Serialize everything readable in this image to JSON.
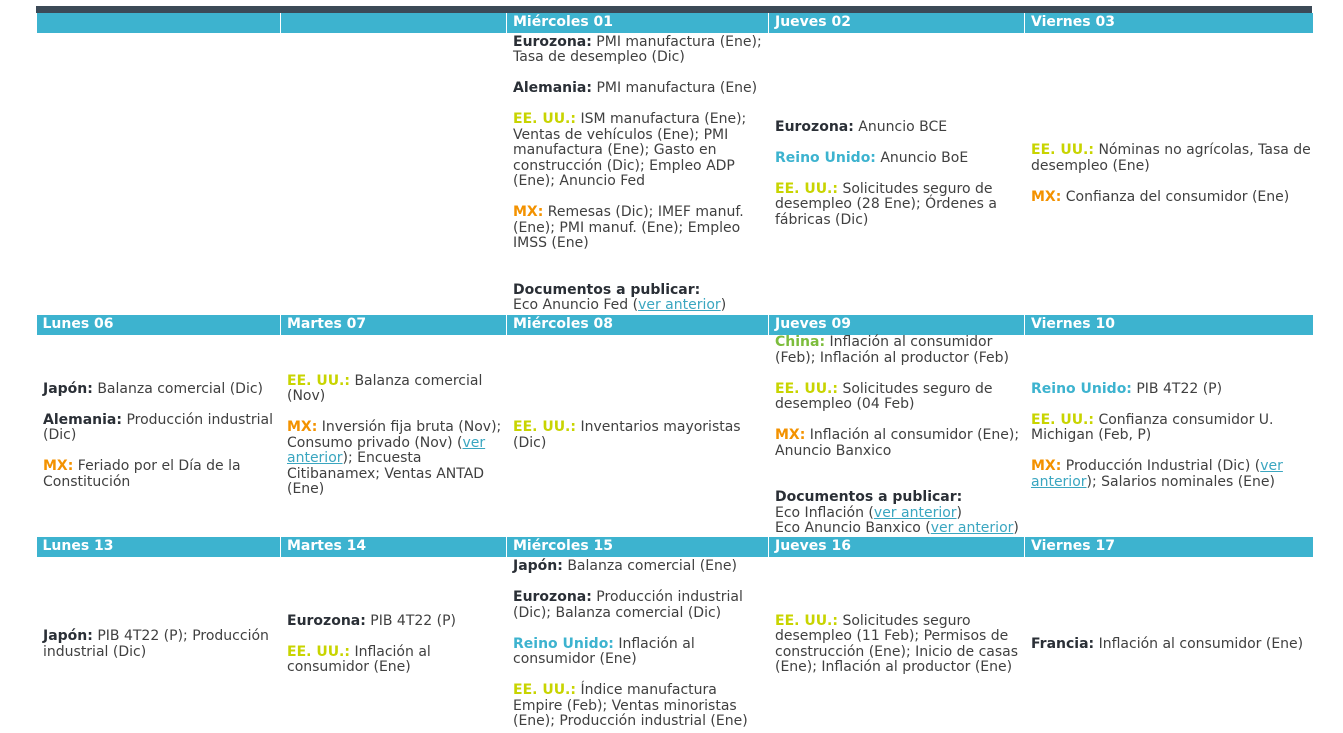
{
  "weeks": [
    {
      "headers": [
        "",
        "",
        "Miércoles 01",
        "Jueves 02",
        "Viernes 03"
      ],
      "cells": [
        [],
        [],
        [
          {
            "label": "Eurozona:",
            "color": "dark",
            "text": "PMI manufactura (Ene); Tasa de desempleo (Dic)"
          },
          {
            "label": "Alemania:",
            "color": "dark",
            "text": "PMI manufactura (Ene)"
          },
          {
            "label": "EE. UU.:",
            "color": "yellow",
            "text": "ISM manufactura (Ene); Ventas de vehículos (Ene); PMI manufactura (Ene); Gasto en construcción (Dic); Empleo ADP (Ene); Anuncio Fed"
          },
          {
            "label": "MX:",
            "color": "orange",
            "text": "Remesas (Dic); IMEF manuf. (Ene); PMI manuf. (Ene); Empleo IMSS (Ene)"
          }
        ],
        [
          {
            "label": "Eurozona:",
            "color": "dark",
            "text": "Anuncio BCE"
          },
          {
            "label": "Reino Unido:",
            "color": "teal",
            "text": "Anuncio BoE"
          },
          {
            "label": "EE. UU.:",
            "color": "yellow",
            "text": "Solicitudes seguro de desempleo (28 Ene); Órdenes a fábricas (Dic)"
          }
        ],
        [
          {
            "label": "EE. UU.:",
            "color": "yellow",
            "text": "Nóminas no agrícolas, Tasa de desempleo (Ene)"
          },
          {
            "label": "MX:",
            "color": "orange",
            "text": "Confianza del consumidor (Ene)"
          }
        ]
      ],
      "docs": {
        "col": 2,
        "title": "Documentos a publicar:",
        "items": [
          {
            "prefix": "Eco Anuncio Fed (",
            "link": "ver anterior",
            "suffix": ")"
          }
        ]
      }
    },
    {
      "headers": [
        "Lunes 06",
        "Martes 07",
        "Miércoles 08",
        "Jueves 09",
        "Viernes 10"
      ],
      "cells": [
        [
          {
            "label": "Japón:",
            "color": "dark",
            "text": "Balanza comercial (Dic)"
          },
          {
            "label": "Alemania:",
            "color": "dark",
            "text": "Producción industrial (Dic)"
          },
          {
            "label": "MX:",
            "color": "orange",
            "text": "Feriado por el Día de la Constitución"
          }
        ],
        [
          {
            "label": "EE. UU.:",
            "color": "yellow",
            "text": "Balanza comercial (Nov)"
          },
          {
            "label": "MX:",
            "color": "orange",
            "text": "Inversión fija bruta (Nov); Consumo privado (Nov) (",
            "link": "ver anterior",
            "after": "); Encuesta Citibanamex; Ventas ANTAD (Ene)"
          }
        ],
        [
          {
            "label": "EE. UU.:",
            "color": "yellow",
            "text": "Inventarios mayoristas (Dic)"
          }
        ],
        [
          {
            "label": "China:",
            "color": "green",
            "text": "Inflación al consumidor (Feb); Inflación al productor (Feb)"
          },
          {
            "label": "EE. UU.:",
            "color": "yellow",
            "text": "Solicitudes seguro de desempleo (04 Feb)"
          },
          {
            "label": "MX:",
            "color": "orange",
            "text": "Inflación al consumidor (Ene); Anuncio Banxico"
          }
        ],
        [
          {
            "label": "Reino Unido:",
            "color": "teal",
            "text": "PIB 4T22 (P)"
          },
          {
            "label": "EE. UU.:",
            "color": "yellow",
            "text": "Confianza consumidor U. Michigan (Feb, P)"
          },
          {
            "label": "MX:",
            "color": "orange",
            "text": "Producción Industrial (Dic) (",
            "link": "ver anterior",
            "after": "); Salarios nominales (Ene)"
          }
        ]
      ],
      "docs": {
        "col": 3,
        "title": "Documentos a publicar:",
        "items": [
          {
            "prefix": "Eco Inflación (",
            "link": "ver anterior",
            "suffix": ")"
          },
          {
            "prefix": "Eco Anuncio Banxico (",
            "link": "ver anterior",
            "suffix": ")"
          }
        ]
      }
    },
    {
      "headers": [
        "Lunes 13",
        "Martes 14",
        "Miércoles 15",
        "Jueves 16",
        "Viernes 17"
      ],
      "cells": [
        [
          {
            "label": "Japón:",
            "color": "dark",
            "text": "PIB 4T22 (P); Producción industrial (Dic)"
          }
        ],
        [
          {
            "label": "Eurozona:",
            "color": "dark",
            "text": "PIB 4T22 (P)"
          },
          {
            "label": "EE. UU.:",
            "color": "yellow",
            "text": "Inflación al consumidor (Ene)"
          }
        ],
        [
          {
            "label": "Japón:",
            "color": "dark",
            "text": "Balanza comercial (Ene)"
          },
          {
            "label": "Eurozona:",
            "color": "dark",
            "text": "Producción industrial (Dic); Balanza comercial (Dic)"
          },
          {
            "label": "Reino Unido:",
            "color": "teal",
            "text": "Inflación al consumidor (Ene)"
          },
          {
            "label": "EE. UU.:",
            "color": "yellow",
            "text": "Índice manufactura Empire (Feb); Ventas minoristas (Ene); Producción industrial (Ene)"
          }
        ],
        [
          {
            "label": "EE. UU.:",
            "color": "yellow",
            "text": "Solicitudes seguro desempleo (11 Feb); Permisos de construcción (Ene); Inicio de casas (Ene); Inflación al productor (Ene)"
          }
        ],
        [
          {
            "label": "Francia:",
            "color": "dark",
            "text": "Inflación al consumidor (Ene)"
          }
        ]
      ],
      "docs": null
    }
  ]
}
